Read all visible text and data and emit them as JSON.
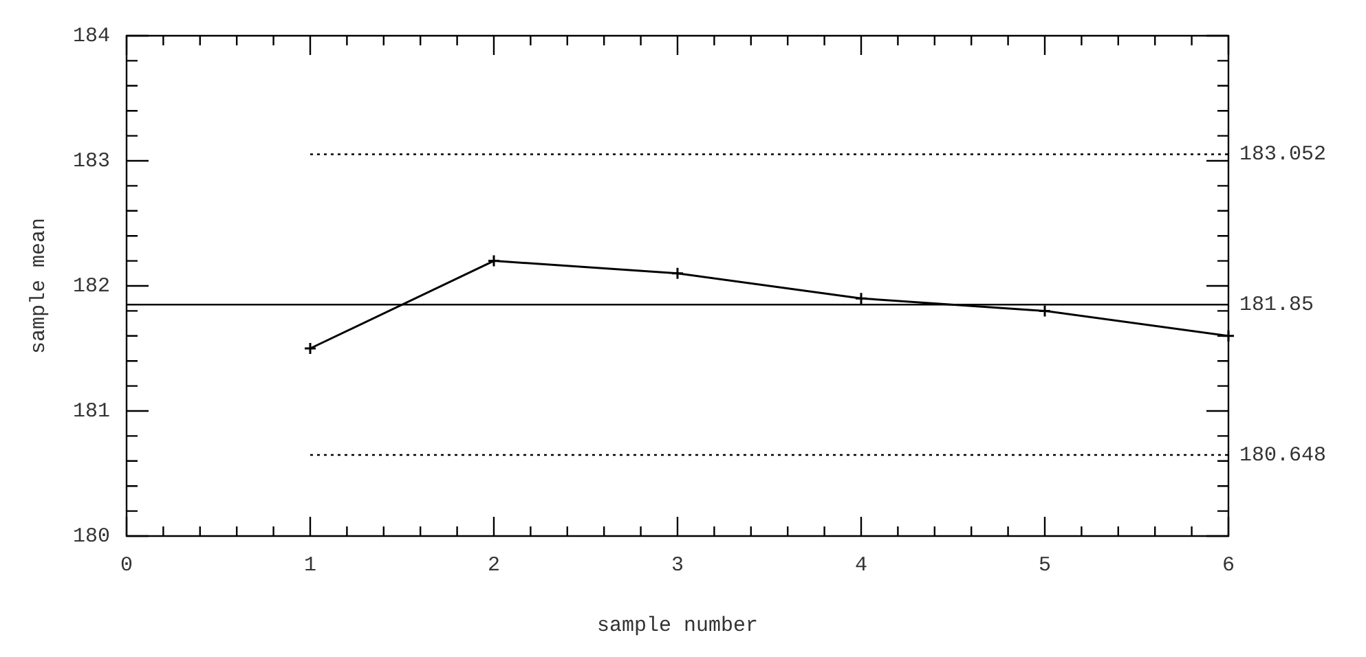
{
  "chart_data": {
    "type": "line",
    "xlabel": "sample number",
    "ylabel": "sample mean",
    "x": [
      1,
      2,
      3,
      4,
      5,
      6
    ],
    "series": [
      {
        "color": "#000000",
        "values": [
          181.5,
          182.2,
          182.1,
          181.9,
          181.8,
          181.6
        ]
      }
    ],
    "marker": "cross",
    "line_style": "solid",
    "grid": false,
    "legend": false,
    "xlim": [
      0,
      6
    ],
    "ylim": [
      180,
      184
    ],
    "xticks": [
      0,
      {
        "value": 0.2,
        "label": null
      },
      {
        "value": 0.4,
        "label": null
      },
      {
        "value": 0.6,
        "label": null
      },
      {
        "value": 0.8,
        "label": null
      },
      1,
      {
        "value": 1.2,
        "label": null
      },
      {
        "value": 1.4,
        "label": null
      },
      {
        "value": 1.6,
        "label": null
      },
      {
        "value": 1.8,
        "label": null
      },
      2,
      {
        "value": 2.2,
        "label": null
      },
      {
        "value": 2.4,
        "label": null
      },
      {
        "value": 2.6,
        "label": null
      },
      {
        "value": 2.8,
        "label": null
      },
      3,
      {
        "value": 3.2,
        "label": null
      },
      {
        "value": 3.4,
        "label": null
      },
      {
        "value": 3.6,
        "label": null
      },
      {
        "value": 3.8,
        "label": null
      },
      4,
      {
        "value": 4.2,
        "label": null
      },
      {
        "value": 4.4,
        "label": null
      },
      {
        "value": 4.6,
        "label": null
      },
      {
        "value": 4.8,
        "label": null
      },
      5,
      {
        "value": 5.2,
        "label": null
      },
      {
        "value": 5.4,
        "label": null
      },
      {
        "value": 5.6,
        "label": null
      },
      {
        "value": 5.8,
        "label": null
      },
      6
    ],
    "yticks": [
      180,
      {
        "value": 180.2,
        "label": null
      },
      {
        "value": 180.4,
        "label": null
      },
      {
        "value": 180.6,
        "label": null
      },
      {
        "value": 180.8,
        "label": null
      },
      181,
      {
        "value": 181.2,
        "label": null
      },
      {
        "value": 181.4,
        "label": null
      },
      {
        "value": 181.6,
        "label": null
      },
      {
        "value": 181.8,
        "label": null
      },
      182,
      {
        "value": 182.2,
        "label": null
      },
      {
        "value": 182.4,
        "label": null
      },
      {
        "value": 182.6,
        "label": null
      },
      {
        "value": 182.8,
        "label": null
      },
      183,
      {
        "value": 183.2,
        "label": null
      },
      {
        "value": 183.4,
        "label": null
      },
      {
        "value": 183.6,
        "label": null
      },
      {
        "value": 183.8,
        "label": null
      },
      184
    ],
    "ref_lines": [
      {
        "axis": "y",
        "value": 183.052,
        "label": "183.052",
        "line_style": "dotted",
        "color": "#000000"
      },
      {
        "axis": "y",
        "value": 181.85,
        "label": "181.85",
        "line_style": "solid",
        "color": "#000000"
      },
      {
        "axis": "y",
        "value": 180.648,
        "label": "180.648",
        "line_style": "dotted",
        "color": "#000000"
      }
    ]
  }
}
